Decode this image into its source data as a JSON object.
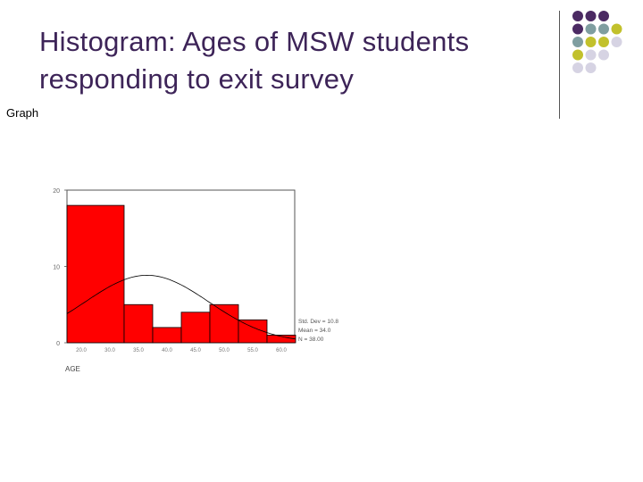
{
  "slide": {
    "title_line1": "Histogram: Ages of MSW students",
    "title_line2": "responding to exit survey",
    "graph_label": "Graph"
  },
  "decoration": {
    "dot_colors": {
      "purple": "#4b2a63",
      "teal": "#7f9ea0",
      "olive": "#c2c12c",
      "lavender": "#d6d3e3"
    },
    "dot_grid": [
      [
        "purple",
        "purple",
        "purple",
        null
      ],
      [
        "purple",
        "teal",
        "teal",
        "olive"
      ],
      [
        "teal",
        "olive",
        "olive",
        "lavender"
      ],
      [
        "olive",
        "lavender",
        "lavender",
        null
      ],
      [
        "lavender",
        "lavender",
        null,
        null
      ]
    ]
  },
  "chart_data": {
    "type": "bar",
    "categories": [
      "20.0",
      "30.0",
      "35.0",
      "40.0",
      "45.0",
      "50.0",
      "55.0",
      "60.0"
    ],
    "x_ticks": [
      "20.0",
      "30.0",
      "35.0",
      "40.0",
      "45.0",
      "50.0",
      "55.0",
      "60.0"
    ],
    "bins": [
      {
        "from": 20,
        "to": 30,
        "count": 18
      },
      {
        "from": 30,
        "to": 35,
        "count": 5
      },
      {
        "from": 35,
        "to": 40,
        "count": 2
      },
      {
        "from": 40,
        "to": 45,
        "count": 4
      },
      {
        "from": 45,
        "to": 50,
        "count": 5
      },
      {
        "from": 50,
        "to": 55,
        "count": 3
      },
      {
        "from": 55,
        "to": 60,
        "count": 1
      }
    ],
    "ylim": [
      0,
      20
    ],
    "y_ticks": [
      "0",
      "10",
      "20"
    ],
    "xlabel": "AGE",
    "normal_curve": {
      "mean": 34.0,
      "sd": 10.8
    },
    "stats": [
      "Std. Dev = 10.8",
      "Mean = 34.0",
      "N = 38.00"
    ],
    "bar_color": "#ff0000"
  }
}
